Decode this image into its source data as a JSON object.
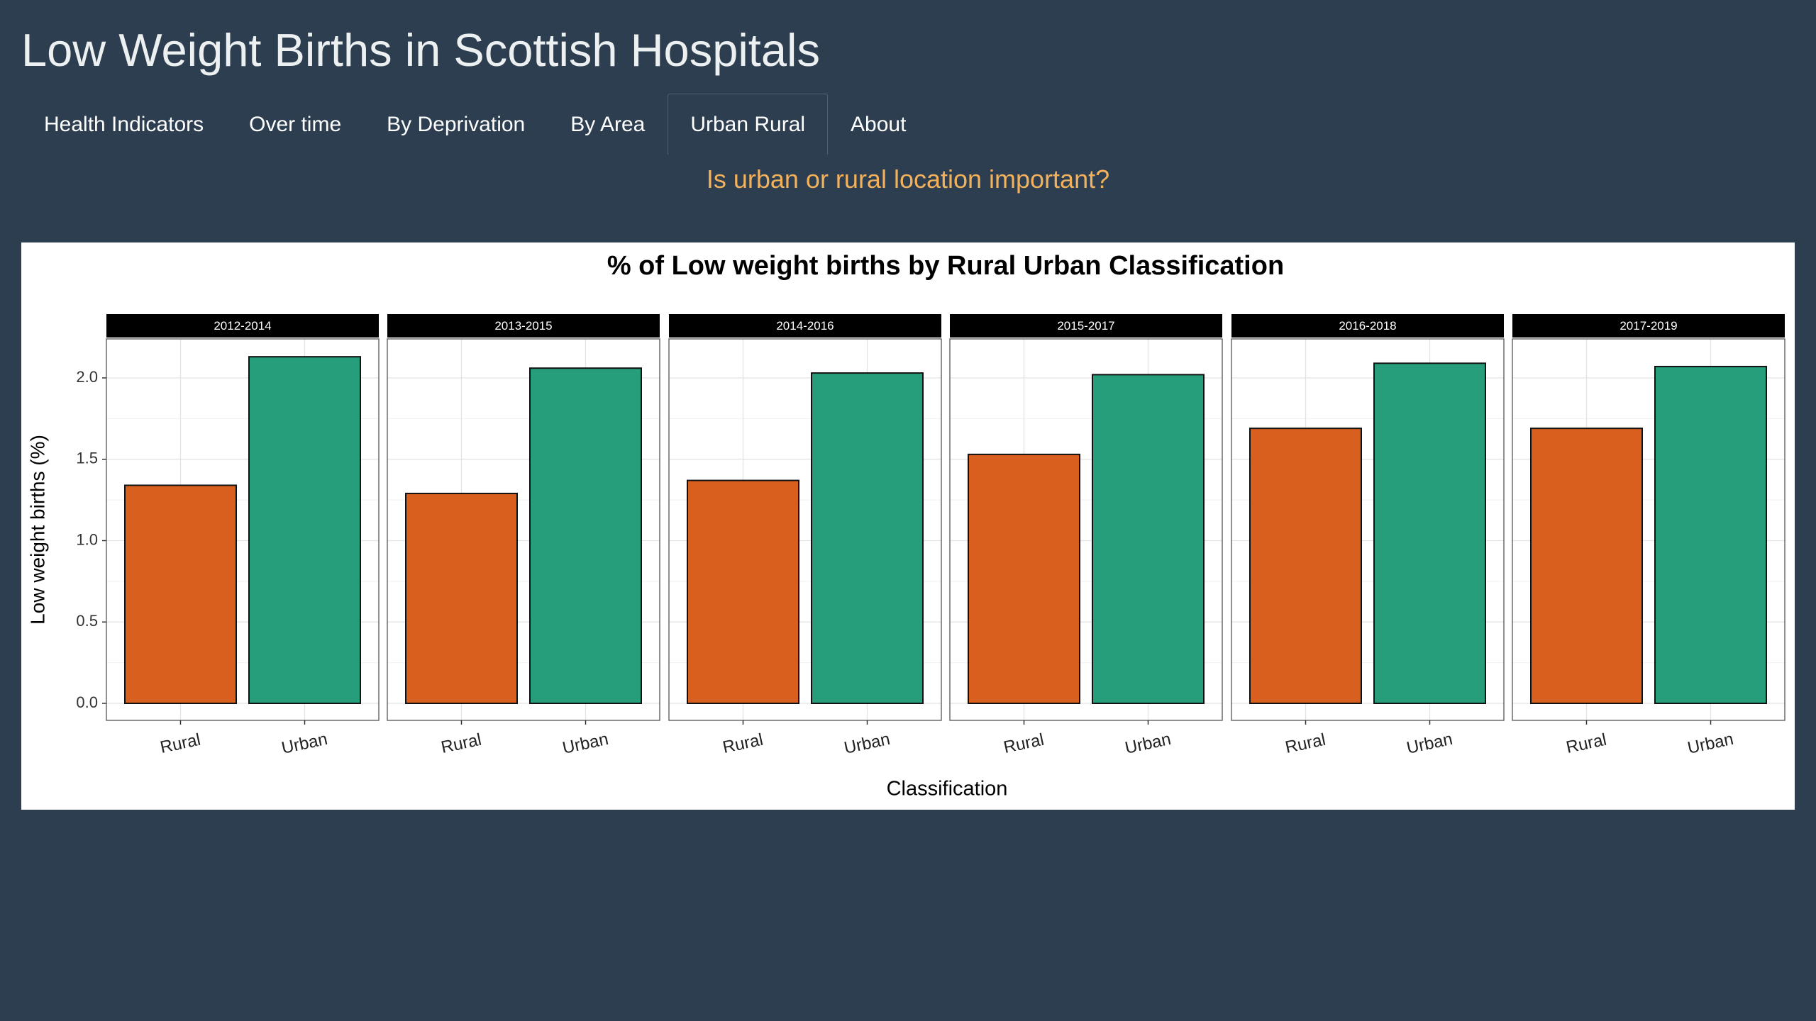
{
  "app": {
    "title": "Low Weight Births in Scottish Hospitals"
  },
  "nav": {
    "tabs": [
      {
        "label": "Health Indicators",
        "active": false
      },
      {
        "label": "Over time",
        "active": false
      },
      {
        "label": "By Deprivation",
        "active": false
      },
      {
        "label": "By Area",
        "active": false
      },
      {
        "label": "Urban Rural",
        "active": true
      },
      {
        "label": "About",
        "active": false
      }
    ]
  },
  "page": {
    "heading": "Is urban or rural location important?"
  },
  "colors": {
    "background": "#2c3e50",
    "heading_accent": "#f2b15d",
    "rural": "#d95f1e",
    "urban": "#269e7b"
  },
  "chart_data": {
    "type": "bar",
    "title": "% of Low weight births by Rural Urban Classification",
    "xlabel": "Classification",
    "ylabel": "Low weight births (%)",
    "categories": [
      "Rural",
      "Urban"
    ],
    "ylim": [
      0,
      2.25
    ],
    "yticks": [
      "0.0",
      "0.5",
      "1.0",
      "1.5",
      "2.0"
    ],
    "grid": true,
    "legend": "none",
    "facets": [
      {
        "label": "2012-2014",
        "values": [
          1.34,
          2.13
        ]
      },
      {
        "label": "2013-2015",
        "values": [
          1.29,
          2.06
        ]
      },
      {
        "label": "2014-2016",
        "values": [
          1.37,
          2.03
        ]
      },
      {
        "label": "2015-2017",
        "values": [
          1.53,
          2.02
        ]
      },
      {
        "label": "2016-2018",
        "values": [
          1.69,
          2.09
        ]
      },
      {
        "label": "2017-2019",
        "values": [
          1.69,
          2.07
        ]
      }
    ]
  }
}
